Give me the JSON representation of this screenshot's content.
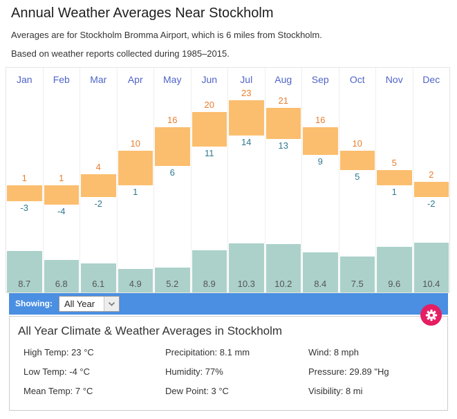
{
  "page": {
    "title": "Annual Weather Averages Near Stockholm",
    "subtitle1": "Averages are for Stockholm Bromma Airport, which is 6 miles from Stockholm.",
    "subtitle2": "Based on weather reports collected during 1985–2015."
  },
  "chart_data": {
    "type": "bar",
    "title": "Annual Weather Averages Near Stockholm",
    "categories": [
      "Jan",
      "Feb",
      "Mar",
      "Apr",
      "May",
      "Jun",
      "Jul",
      "Aug",
      "Sep",
      "Oct",
      "Nov",
      "Dec"
    ],
    "series": [
      {
        "name": "High Temp (°C)",
        "values": [
          1,
          1,
          4,
          10,
          16,
          20,
          23,
          21,
          16,
          10,
          5,
          2
        ]
      },
      {
        "name": "Low Temp (°C)",
        "values": [
          -3,
          -4,
          -2,
          1,
          6,
          11,
          14,
          13,
          9,
          5,
          1,
          -2
        ]
      },
      {
        "name": "Precipitation (mm)",
        "values": [
          8.7,
          6.8,
          6.1,
          4.9,
          5.2,
          8.9,
          10.3,
          10.2,
          8.4,
          7.5,
          9.6,
          10.4
        ]
      }
    ],
    "temp_range_shown": [
      -4,
      23
    ],
    "legend_position": "none",
    "grid": "vertical-column-separators",
    "colors": {
      "temp_bar": "#fbbe6e",
      "high_label": "#e87d2d",
      "low_label": "#31798f",
      "precip_bar": "#abd1ca",
      "precip_label": "#555555",
      "month_label": "#4f63c8",
      "showing_bar": "#4a8fe2",
      "gear_button": "#e61e63"
    }
  },
  "showing_bar": {
    "label": "Showing:",
    "selected_option": "All Year"
  },
  "summary": {
    "heading": "All Year Climate & Weather Averages in Stockholm",
    "stats": [
      {
        "label": "High Temp",
        "value": "23 °C"
      },
      {
        "label": "Precipitation",
        "value": "8.1 mm"
      },
      {
        "label": "Wind",
        "value": "8 mph"
      },
      {
        "label": "Low Temp",
        "value": "-4 °C"
      },
      {
        "label": "Humidity",
        "value": "77%"
      },
      {
        "label": "Pressure",
        "value": "29.89 \"Hg"
      },
      {
        "label": "Mean Temp",
        "value": "7 °C"
      },
      {
        "label": "Dew Point",
        "value": "3 °C"
      },
      {
        "label": "Visibility",
        "value": "8 mi"
      }
    ]
  }
}
